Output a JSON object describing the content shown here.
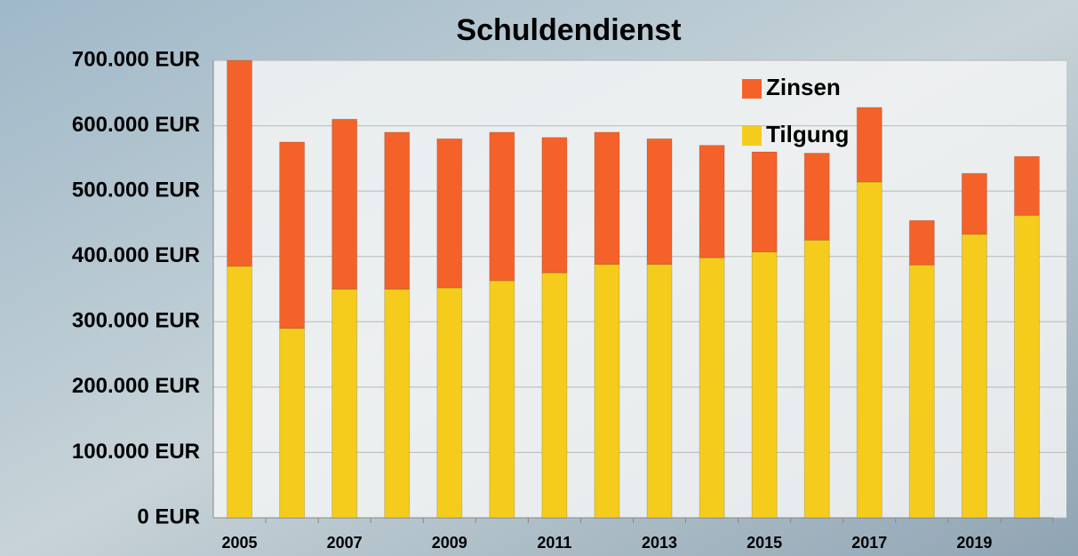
{
  "chart_data": {
    "type": "stacked_bar",
    "title": "Schuldendienst",
    "categories": [
      "2005",
      null,
      "2007",
      null,
      "2009",
      null,
      "2011",
      null,
      "2013",
      null,
      "2015",
      null,
      "2017",
      null,
      "2019",
      null
    ],
    "series": [
      {
        "name": "Tilgung",
        "color": "#f5cc1c",
        "values": [
          385000,
          290000,
          350000,
          350000,
          352000,
          363000,
          375000,
          388000,
          388000,
          398000,
          407000,
          425000,
          514000,
          387000,
          434000,
          463000
        ]
      },
      {
        "name": "Zinsen",
        "color": "#f4622a",
        "values": [
          315000,
          285000,
          260000,
          240000,
          228000,
          227000,
          207000,
          202000,
          192000,
          172000,
          153000,
          133000,
          114000,
          68000,
          93000,
          90000
        ]
      }
    ],
    "ylim": [
      0,
      700000
    ],
    "yticks": [
      {
        "value": 0,
        "label": "0 EUR"
      },
      {
        "value": 100000,
        "label": "100.000 EUR"
      },
      {
        "value": 200000,
        "label": "200.000 EUR"
      },
      {
        "value": 300000,
        "label": "300.000 EUR"
      },
      {
        "value": 400000,
        "label": "400.000 EUR"
      },
      {
        "value": 500000,
        "label": "500.000 EUR"
      },
      {
        "value": 600000,
        "label": "600.000 EUR"
      },
      {
        "value": 700000,
        "label": "700.000 EUR"
      }
    ],
    "grid": true
  }
}
